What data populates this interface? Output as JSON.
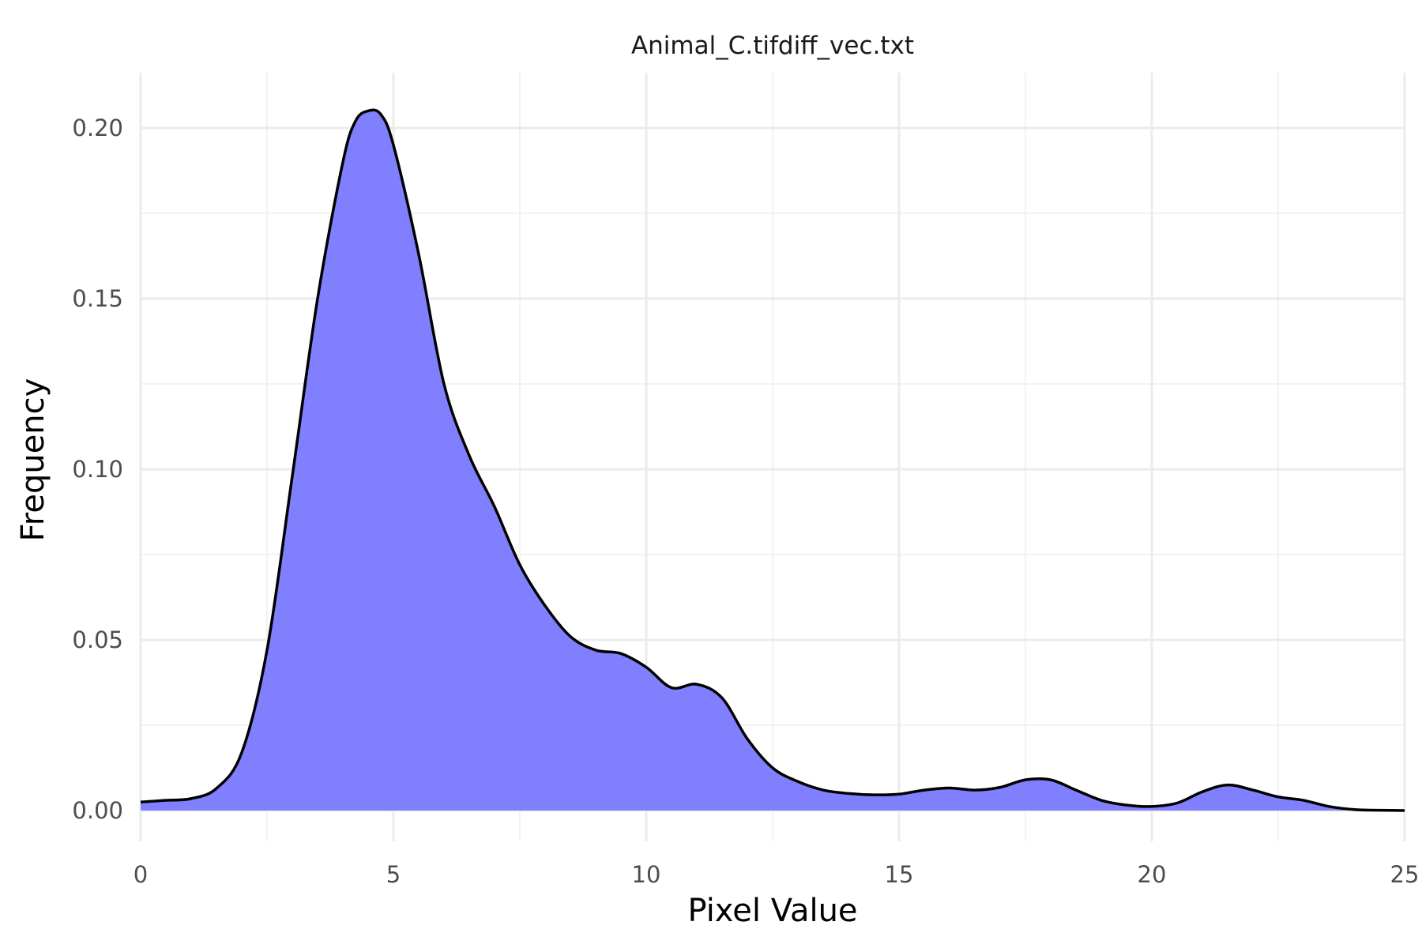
{
  "chart_data": {
    "type": "area",
    "title": "Animal_C.tifdiff_vec.txt",
    "xlabel": "Pixel Value",
    "ylabel": "Frequency",
    "xlim": [
      0,
      25
    ],
    "ylim": [
      0,
      0.2
    ],
    "x_ticks": [
      0,
      5,
      10,
      15,
      20,
      25
    ],
    "x_tick_labels": [
      "0",
      "5",
      "10",
      "15",
      "20",
      "25"
    ],
    "y_ticks": [
      0,
      0.05,
      0.1,
      0.15,
      0.2
    ],
    "y_tick_labels": [
      "0.00",
      "0.05",
      "0.10",
      "0.15",
      "0.20"
    ],
    "grid": true,
    "legend": "none",
    "fill_color": "#8080ff",
    "line_color": "#000000",
    "series": [
      {
        "x": [
          0,
          0.5,
          1.0,
          1.5,
          2.0,
          2.5,
          3.0,
          3.5,
          4.0,
          4.25,
          4.5,
          4.75,
          5.0,
          5.5,
          6.0,
          6.5,
          7.0,
          7.5,
          8.0,
          8.5,
          9.0,
          9.5,
          10.0,
          10.5,
          11.0,
          11.5,
          12.0,
          12.5,
          13.0,
          13.5,
          14.0,
          14.5,
          15.0,
          15.5,
          16.0,
          16.5,
          17.0,
          17.5,
          18.0,
          18.5,
          19.0,
          19.5,
          20.0,
          20.5,
          21.0,
          21.5,
          22.0,
          22.5,
          23.0,
          23.5,
          24.0,
          24.5,
          25.0
        ],
        "y": [
          0.0025,
          0.003,
          0.0035,
          0.0065,
          0.017,
          0.047,
          0.098,
          0.15,
          0.19,
          0.202,
          0.205,
          0.204,
          0.195,
          0.163,
          0.125,
          0.104,
          0.089,
          0.072,
          0.06,
          0.051,
          0.047,
          0.046,
          0.042,
          0.036,
          0.037,
          0.033,
          0.021,
          0.0125,
          0.0085,
          0.006,
          0.005,
          0.0046,
          0.0048,
          0.006,
          0.0066,
          0.006,
          0.0068,
          0.009,
          0.009,
          0.006,
          0.003,
          0.0016,
          0.0012,
          0.0022,
          0.0055,
          0.0075,
          0.006,
          0.004,
          0.003,
          0.0012,
          0.0003,
          0.0001,
          0.0
        ]
      }
    ]
  }
}
